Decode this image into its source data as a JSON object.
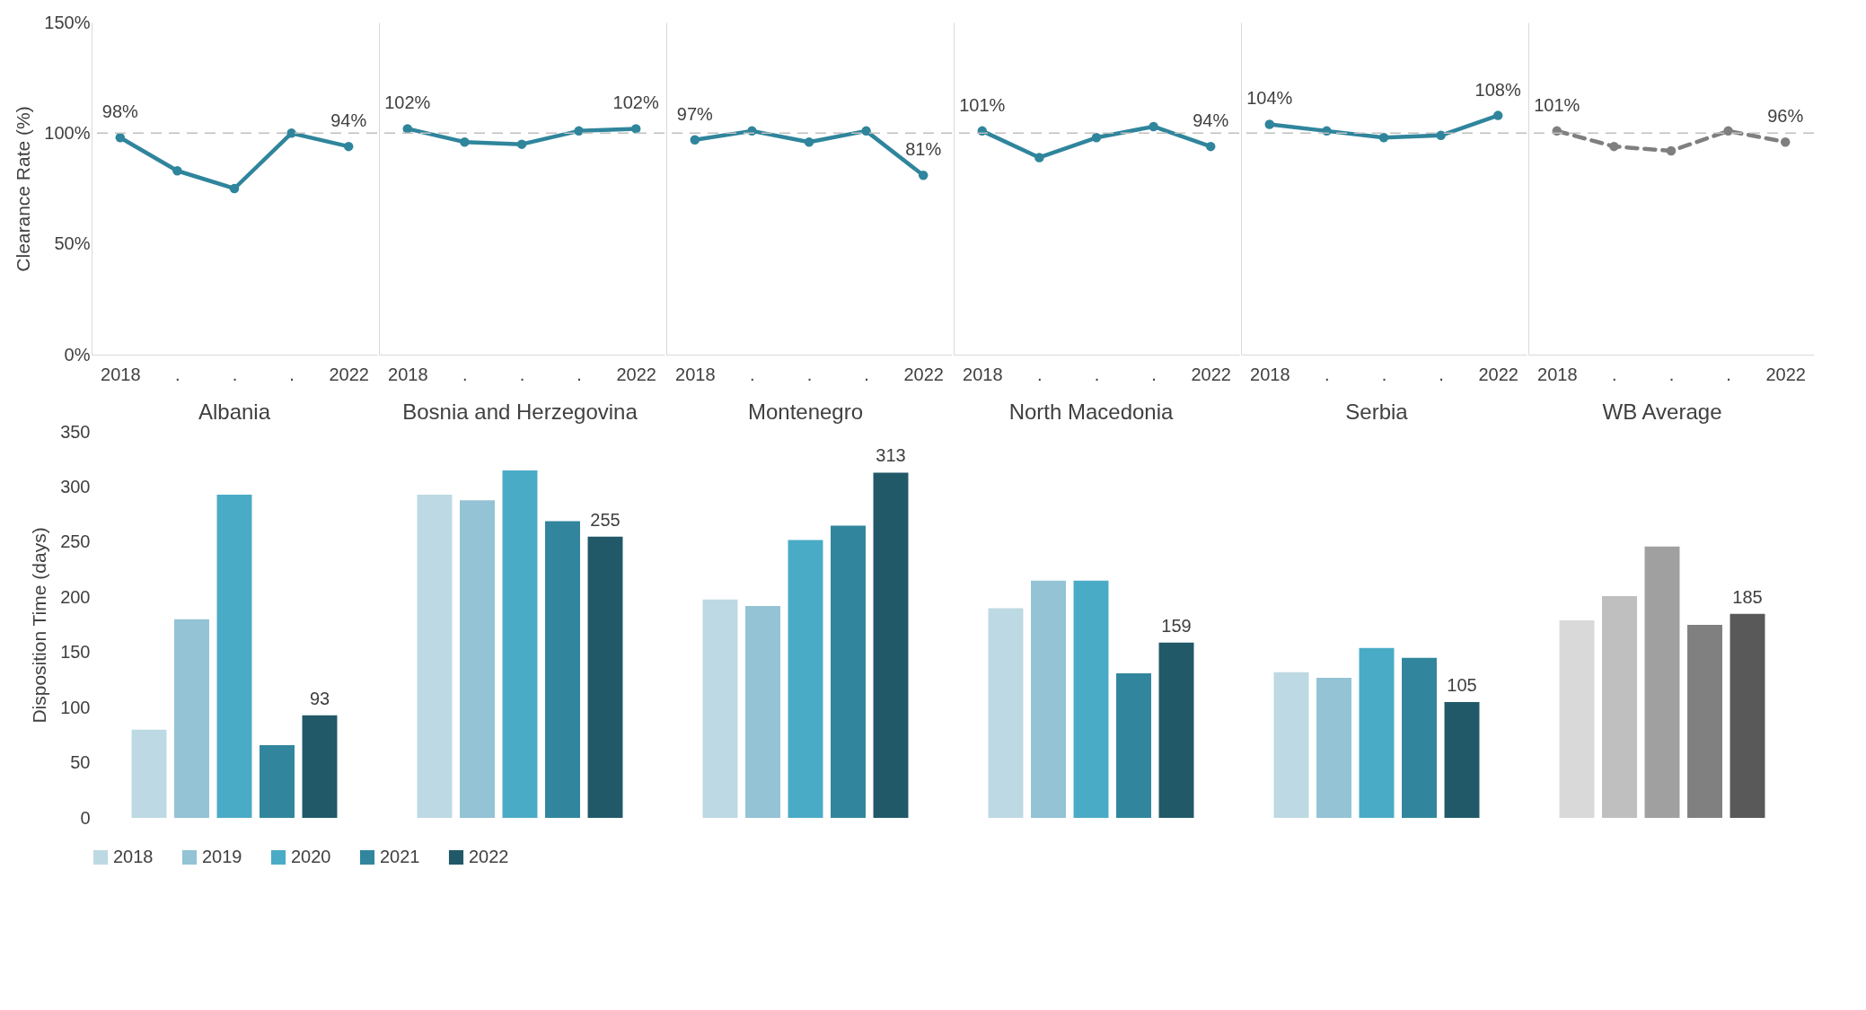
{
  "chart_data": [
    {
      "type": "line",
      "ylabel": "Clearance Rate (%)",
      "categories": [
        "2018",
        ".",
        ".",
        ".",
        "2022"
      ],
      "ylim": [
        0,
        150
      ],
      "yticks": [
        {
          "value": 0,
          "label": "0%"
        },
        {
          "value": 50,
          "label": "50%"
        },
        {
          "value": 100,
          "label": "100%"
        },
        {
          "value": 150,
          "label": "150%"
        }
      ],
      "marker": "circle",
      "line_style": "solid",
      "ref_lines": [
        {
          "axis": "y",
          "value": 100,
          "color": "#bfbfbf",
          "line_style": "dashed"
        }
      ],
      "series": [
        {
          "color": "#2f859c",
          "values": [
            98,
            83,
            75,
            100,
            94
          ],
          "value_labels": [
            "98%",
            null,
            null,
            null,
            "94%"
          ]
        }
      ]
    },
    {
      "type": "line",
      "categories": [
        "2018",
        ".",
        ".",
        ".",
        "2022"
      ],
      "ylim": [
        0,
        150
      ],
      "tick_labels": "x",
      "marker": "circle",
      "line_style": "solid",
      "ref_lines": [
        {
          "axis": "y",
          "value": 100,
          "color": "#bfbfbf",
          "line_style": "dashed"
        }
      ],
      "series": [
        {
          "color": "#2f859c",
          "values": [
            102,
            96,
            95,
            101,
            102
          ],
          "value_labels": [
            "102%",
            null,
            null,
            null,
            "102%"
          ]
        }
      ]
    },
    {
      "type": "line",
      "categories": [
        "2018",
        ".",
        ".",
        ".",
        "2022"
      ],
      "ylim": [
        0,
        150
      ],
      "tick_labels": "x",
      "marker": "circle",
      "line_style": "solid",
      "ref_lines": [
        {
          "axis": "y",
          "value": 100,
          "color": "#bfbfbf",
          "line_style": "dashed"
        }
      ],
      "series": [
        {
          "color": "#2f859c",
          "values": [
            97,
            101,
            96,
            101,
            81
          ],
          "value_labels": [
            "97%",
            null,
            null,
            null,
            "81%"
          ]
        }
      ]
    },
    {
      "type": "line",
      "categories": [
        "2018",
        ".",
        ".",
        ".",
        "2022"
      ],
      "ylim": [
        0,
        150
      ],
      "tick_labels": "x",
      "marker": "circle",
      "line_style": "solid",
      "ref_lines": [
        {
          "axis": "y",
          "value": 100,
          "color": "#bfbfbf",
          "line_style": "dashed"
        }
      ],
      "series": [
        {
          "color": "#2f859c",
          "values": [
            101,
            89,
            98,
            103,
            94
          ],
          "value_labels": [
            "101%",
            null,
            null,
            null,
            "94%"
          ]
        }
      ]
    },
    {
      "type": "line",
      "categories": [
        "2018",
        ".",
        ".",
        ".",
        "2022"
      ],
      "ylim": [
        0,
        150
      ],
      "tick_labels": "x",
      "marker": "circle",
      "line_style": "solid",
      "ref_lines": [
        {
          "axis": "y",
          "value": 100,
          "color": "#bfbfbf",
          "line_style": "dashed"
        }
      ],
      "series": [
        {
          "color": "#2f859c",
          "values": [
            104,
            101,
            98,
            99,
            108
          ],
          "value_labels": [
            "104%",
            null,
            null,
            null,
            "108%"
          ]
        }
      ]
    },
    {
      "type": "line",
      "categories": [
        "2018",
        ".",
        ".",
        ".",
        "2022"
      ],
      "ylim": [
        0,
        150
      ],
      "tick_labels": "x",
      "marker": "circle",
      "line_style": "dashed",
      "ref_lines": [
        {
          "axis": "y",
          "value": 100,
          "color": "#bfbfbf",
          "line_style": "dashed"
        }
      ],
      "series": [
        {
          "color": "#7f7f7f",
          "values": [
            101,
            94,
            92,
            101,
            96
          ],
          "value_labels": [
            "101%",
            null,
            null,
            null,
            "96%"
          ]
        }
      ]
    },
    {
      "type": "bar",
      "ylabel": "Disposition Time (days)",
      "categories": [
        "Albania",
        "Bosnia and Herzegovina",
        "Montenegro",
        "North Macedonia",
        "Serbia",
        "WB Average"
      ],
      "ylim": [
        0,
        350
      ],
      "yticks": [
        0,
        50,
        100,
        150,
        200,
        250,
        300,
        350
      ],
      "legend": "bottom",
      "series": [
        {
          "name": "2018",
          "color": "#bdd9e3",
          "colors": [
            "#bdd9e3",
            "#bdd9e3",
            "#bdd9e3",
            "#bdd9e3",
            "#bdd9e3",
            "#d9d9d9"
          ],
          "values": [
            80,
            293,
            198,
            190,
            132,
            179
          ]
        },
        {
          "name": "2019",
          "color": "#93c3d5",
          "colors": [
            "#93c3d5",
            "#93c3d5",
            "#93c3d5",
            "#93c3d5",
            "#93c3d5",
            "#bfbfbf"
          ],
          "values": [
            180,
            288,
            192,
            215,
            127,
            201
          ]
        },
        {
          "name": "2020",
          "color": "#4aabc6",
          "colors": [
            "#4aabc6",
            "#4aabc6",
            "#4aabc6",
            "#4aabc6",
            "#4aabc6",
            "#a0a0a0"
          ],
          "values": [
            293,
            315,
            252,
            215,
            154,
            246
          ]
        },
        {
          "name": "2021",
          "color": "#31869d",
          "colors": [
            "#31869d",
            "#31869d",
            "#31869d",
            "#31869d",
            "#31869d",
            "#808080"
          ],
          "values": [
            66,
            269,
            265,
            131,
            145,
            175
          ]
        },
        {
          "name": "2022",
          "color": "#215968",
          "colors": [
            "#215968",
            "#215968",
            "#215968",
            "#215968",
            "#215968",
            "#595959"
          ],
          "values": [
            93,
            255,
            313,
            159,
            105,
            185
          ],
          "value_labels": [
            "93",
            "255",
            "313",
            "159",
            "105",
            "185"
          ]
        }
      ]
    }
  ]
}
